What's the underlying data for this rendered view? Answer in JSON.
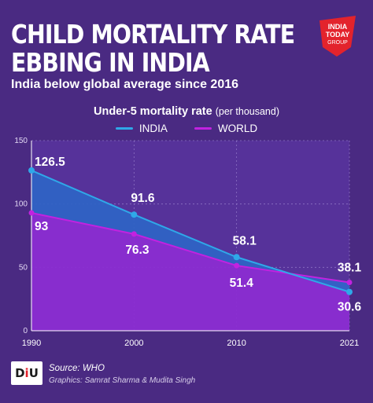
{
  "header": {
    "title_line1": "CHILD MORTALITY RATE",
    "title_line2": "EBBING IN INDIA",
    "subtitle": "India below global average since 2016"
  },
  "logo": {
    "icon": "india-today-group-logo",
    "line1": "INDIA",
    "line2": "TODAY",
    "line3": "GROUP",
    "color": "#e3232c"
  },
  "chart_data": {
    "type": "area",
    "title": "Under-5 mortality rate",
    "title_note": "(per thousand)",
    "x": [
      1990,
      2000,
      2010,
      2021
    ],
    "x_tick_labels": [
      "1990",
      "2000",
      "2010",
      "2021"
    ],
    "ylim": [
      0,
      150
    ],
    "y_ticks": [
      0,
      50,
      100,
      150
    ],
    "grid": true,
    "legend_position": "top-center",
    "series": [
      {
        "name": "INDIA",
        "values": [
          126.5,
          91.6,
          58.1,
          30.6
        ],
        "labels": [
          "126.5",
          "91.6",
          "58.1",
          "30.6"
        ],
        "color": "#2fa8e8"
      },
      {
        "name": "WORLD",
        "values": [
          93,
          76.3,
          51.4,
          38.1
        ],
        "labels": [
          "93",
          "76.3",
          "51.4",
          "38.1"
        ],
        "color": "#c222e0"
      }
    ]
  },
  "footer": {
    "brand_d": "D",
    "brand_i": "i",
    "brand_u": "U",
    "source": "Source: WHO",
    "credit": "Graphics: Samrat Sharma & Mudita Singh"
  }
}
